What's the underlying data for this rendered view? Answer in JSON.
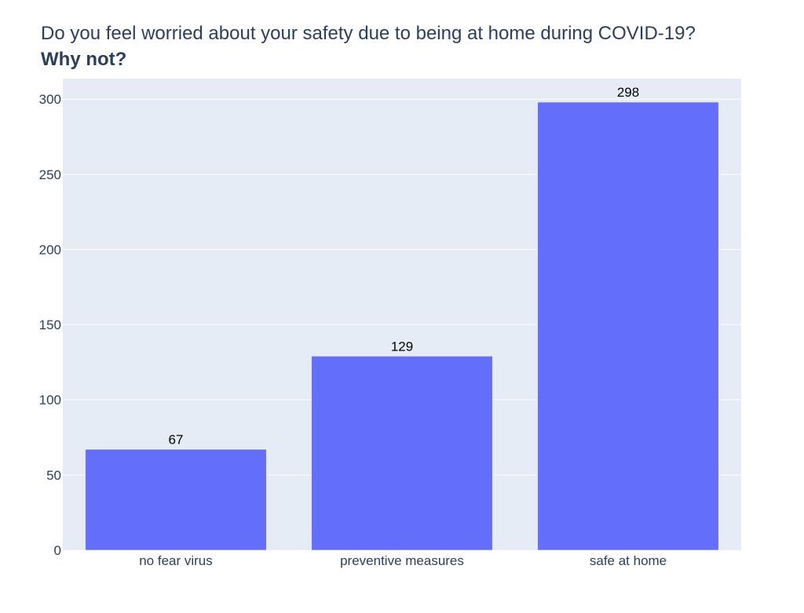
{
  "chart_data": {
    "type": "bar",
    "title": "Do you feel worried about your safety due to being at home during COVID-19?",
    "subtitle": "Why not?",
    "xlabel": "",
    "ylabel": "",
    "categories": [
      "no fear virus",
      "preventive measures",
      "safe at home"
    ],
    "values": [
      67,
      129,
      298
    ],
    "data_labels": [
      "67",
      "129",
      "298"
    ],
    "ylim": [
      0,
      313.7
    ],
    "yticks": [
      0,
      50,
      100,
      150,
      200,
      250,
      300
    ],
    "ytick_labels": [
      "0",
      "50",
      "100",
      "150",
      "200",
      "250",
      "300"
    ],
    "grid": true,
    "legend": "none",
    "colors": {
      "bar": "#636efa",
      "plot_bg": "#e5ecf6",
      "grid": "#ffffff",
      "text": "#2a3f5f"
    }
  }
}
